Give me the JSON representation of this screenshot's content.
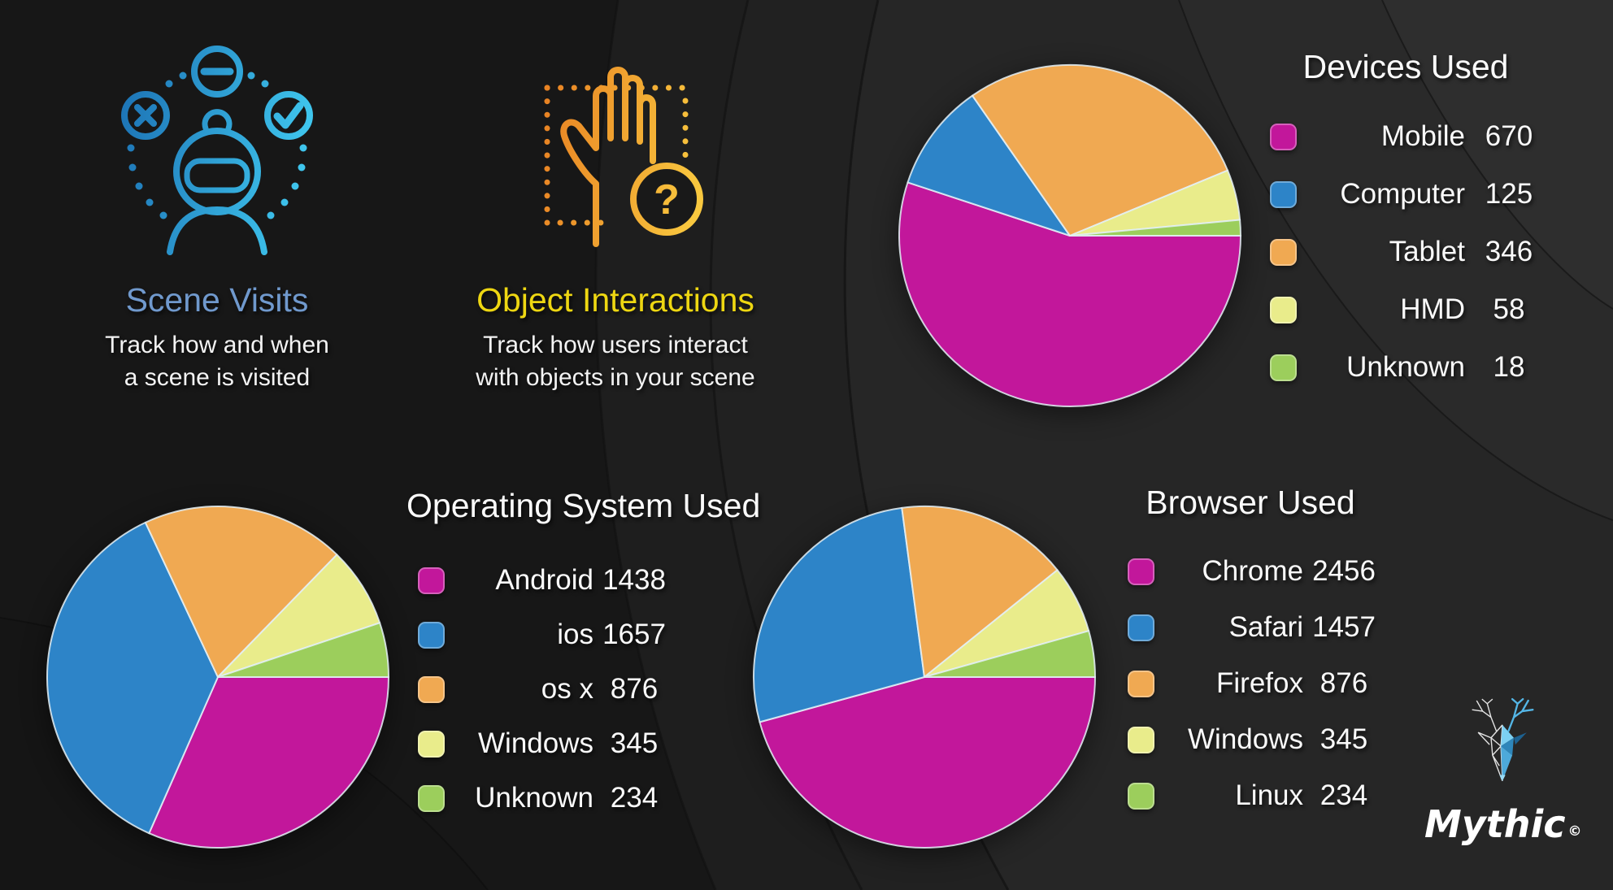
{
  "features": [
    {
      "title": "Scene Visits",
      "line1": "Track how and when",
      "line2": "a scene is visited",
      "title_color": "#7099cd"
    },
    {
      "title": "Object Interactions",
      "line1": "Track how users interact",
      "line2": "with objects in your scene",
      "title_color": "#eed712",
      "icon_glyph": "?"
    }
  ],
  "chart_data": [
    {
      "type": "pie",
      "title": "Devices Used",
      "categories": [
        "Mobile",
        "Computer",
        "Tablet",
        "HMD",
        "Unknown"
      ],
      "values": [
        670,
        125,
        346,
        58,
        18
      ],
      "colors": [
        "#c2179b",
        "#2d84c8",
        "#f0a952",
        "#e9ec8b",
        "#9cce5c"
      ],
      "legend_position": "right",
      "start_angle": "3-oclock",
      "direction": "clockwise"
    },
    {
      "type": "pie",
      "title": "Operating System Used",
      "categories": [
        "Android",
        "ios",
        "os x",
        "Windows",
        "Unknown"
      ],
      "values": [
        1438,
        1657,
        876,
        345,
        234
      ],
      "colors": [
        "#c2179b",
        "#2d84c8",
        "#f0a952",
        "#e9ec8b",
        "#9cce5c"
      ],
      "legend_position": "right",
      "start_angle": "3-oclock",
      "direction": "clockwise"
    },
    {
      "type": "pie",
      "title": "Browser Used",
      "categories": [
        "Chrome",
        "Safari",
        "Firefox",
        "Windows",
        "Linux"
      ],
      "values": [
        2456,
        1457,
        876,
        345,
        234
      ],
      "colors": [
        "#c2179b",
        "#2d84c8",
        "#f0a952",
        "#e9ec8b",
        "#9cce5c"
      ],
      "legend_position": "right",
      "start_angle": "3-oclock",
      "direction": "clockwise"
    }
  ],
  "logo": {
    "brand": "Mythic",
    "copyright": "©"
  }
}
